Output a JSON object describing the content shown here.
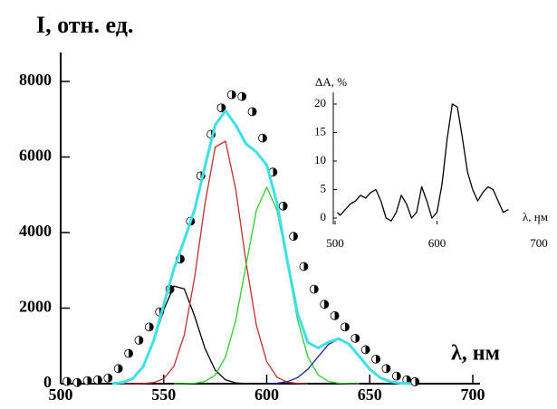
{
  "chart_data": [
    {
      "type": "line",
      "ylabel": "I, отн. ед.",
      "xlabel": "λ, нм",
      "xlim": [
        500,
        700
      ],
      "xticks": [
        500,
        550,
        600,
        650,
        700
      ],
      "ylim": [
        0,
        8700
      ],
      "yticks": [
        0,
        2000,
        4000,
        6000,
        8000
      ],
      "series": [
        {
          "color": "#000000",
          "marker": "half-circle",
          "x": [
            503,
            508,
            513,
            518,
            523,
            528,
            533,
            538,
            543,
            548,
            553,
            558,
            563,
            568,
            573,
            578,
            583,
            588,
            593,
            598,
            603,
            608,
            613,
            618,
            623,
            628,
            633,
            638,
            643,
            648,
            653,
            658,
            663,
            668,
            672
          ],
          "values": [
            60,
            30,
            80,
            100,
            150,
            400,
            800,
            1150,
            1500,
            1900,
            2500,
            3300,
            4300,
            5500,
            6600,
            7300,
            7650,
            7600,
            7200,
            6500,
            5600,
            4700,
            3900,
            3100,
            2500,
            2100,
            1800,
            1500,
            1200,
            900,
            650,
            400,
            200,
            100,
            50
          ]
        },
        {
          "color": "#000000",
          "x": [
            525,
            530,
            535,
            540,
            545,
            550,
            555,
            560,
            565,
            570,
            575,
            580,
            585,
            590,
            595
          ],
          "values": [
            5,
            30,
            133,
            446,
            1090,
            1960,
            2585,
            2507,
            1785,
            934,
            359,
            101,
            21,
            3,
            0
          ]
        },
        {
          "color": "#c0302a",
          "x": [
            530,
            535,
            540,
            545,
            550,
            555,
            560,
            565,
            570,
            575,
            580,
            585,
            590,
            595,
            600,
            605,
            610,
            615,
            620
          ],
          "values": [
            0,
            1,
            5,
            28,
            130,
            465,
            1297,
            2814,
            4756,
            6260,
            6420,
            5128,
            3188,
            1543,
            583,
            171,
            39,
            7,
            0
          ]
        },
        {
          "color": "#2ecc2e",
          "x": [
            555,
            560,
            565,
            570,
            575,
            580,
            585,
            590,
            595,
            600,
            605,
            610,
            615,
            620,
            625,
            630,
            635,
            640,
            645
          ],
          "values": [
            0,
            2,
            11,
            58,
            228,
            704,
            1689,
            3154,
            4589,
            5200,
            4589,
            3154,
            1689,
            704,
            228,
            58,
            11,
            2,
            0
          ]
        },
        {
          "color": "#1a1aa0",
          "x": [
            600,
            605,
            610,
            615,
            620,
            625,
            630,
            635,
            640,
            645,
            650,
            655,
            660,
            665,
            670
          ],
          "values": [
            3,
            13,
            52,
            160,
            383,
            716,
            1041,
            1180,
            1041,
            716,
            383,
            160,
            52,
            13,
            3
          ]
        },
        {
          "color": "#3ee0e8",
          "width": 3,
          "x": [
            525,
            530,
            535,
            540,
            545,
            550,
            555,
            560,
            565,
            570,
            575,
            580,
            585,
            590,
            595,
            600,
            605,
            610,
            615,
            620,
            625,
            630,
            635,
            640,
            645,
            650,
            655,
            660,
            665,
            670
          ],
          "values": [
            5,
            30,
            134,
            451,
            1118,
            2090,
            3050,
            3806,
            4610,
            5748,
            6847,
            7225,
            6838,
            6345,
            6132,
            5786,
            4773,
            3245,
            1856,
            1087,
            944,
            1099,
            1191,
            1043,
            716,
            383,
            160,
            52,
            13,
            3
          ]
        }
      ]
    },
    {
      "type": "line",
      "ylabel": "ΔA, %",
      "xlabel": "λ, нм",
      "xlim": [
        500,
        700
      ],
      "xticks": [
        500,
        600,
        700
      ],
      "ylim": [
        -1,
        22
      ],
      "yticks": [
        0,
        5,
        10,
        15,
        20
      ],
      "series": [
        {
          "color": "#000000",
          "x": [
            502,
            505,
            510,
            515,
            520,
            525,
            530,
            535,
            540,
            545,
            550,
            555,
            560,
            565,
            570,
            575,
            580,
            585,
            590,
            595,
            600,
            605,
            610,
            615,
            620,
            625,
            630,
            635,
            640,
            645,
            650,
            655,
            660,
            665,
            670
          ],
          "values": [
            1,
            0.5,
            1.5,
            2.5,
            3,
            4,
            3.5,
            4.5,
            5,
            3,
            0,
            -0.5,
            1,
            4,
            2.5,
            0,
            1,
            5.5,
            3,
            0,
            1,
            6,
            14,
            20,
            19.5,
            14,
            8,
            5,
            3,
            4.5,
            5.5,
            5,
            3,
            1,
            1.5
          ]
        }
      ]
    }
  ]
}
